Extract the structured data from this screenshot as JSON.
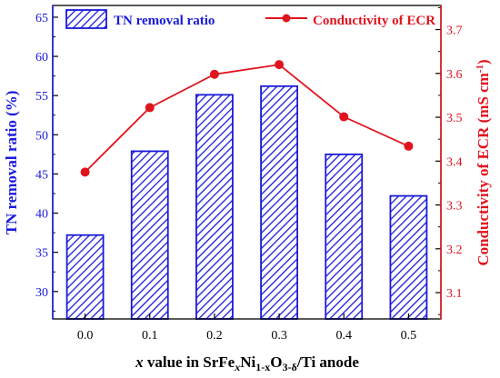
{
  "chart_data": {
    "type": "bar+line",
    "x_label": {
      "pre": "x",
      "mid1": " value in SrFe",
      "sub1": "x",
      "mid2": "Ni",
      "sub2": "1-x",
      "mid3": "O",
      "sub3": "3-δ",
      "post": "/Ti anode"
    },
    "categories": [
      "0.0",
      "0.1",
      "0.2",
      "0.3",
      "0.4",
      "0.5"
    ],
    "y_left": {
      "label": "TN removal ratio (%)",
      "min": 26.5,
      "max": 66.5,
      "ticks": [
        "30",
        "35",
        "40",
        "45",
        "50",
        "55",
        "60",
        "65"
      ],
      "color": "#1a1adb"
    },
    "y_right": {
      "label_main": "Conductivity of ECR (mS cm",
      "label_sup": "-1",
      "label_end": ")",
      "min": 3.04,
      "max": 3.755,
      "ticks": [
        "3.1",
        "3.2",
        "3.3",
        "3.4",
        "3.5",
        "3.6",
        "3.7"
      ],
      "color": "#e0141e"
    },
    "series": [
      {
        "name": "TN removal ratio",
        "kind": "bar",
        "axis": "left",
        "color": "#1a1adb",
        "values": [
          37.2,
          47.9,
          55.1,
          56.2,
          47.5,
          42.2
        ]
      },
      {
        "name": "Conductivity of ECR",
        "kind": "line",
        "axis": "right",
        "color": "#e0141e",
        "values": [
          3.375,
          3.522,
          3.598,
          3.62,
          3.501,
          3.434
        ]
      }
    ],
    "legend": "top"
  }
}
